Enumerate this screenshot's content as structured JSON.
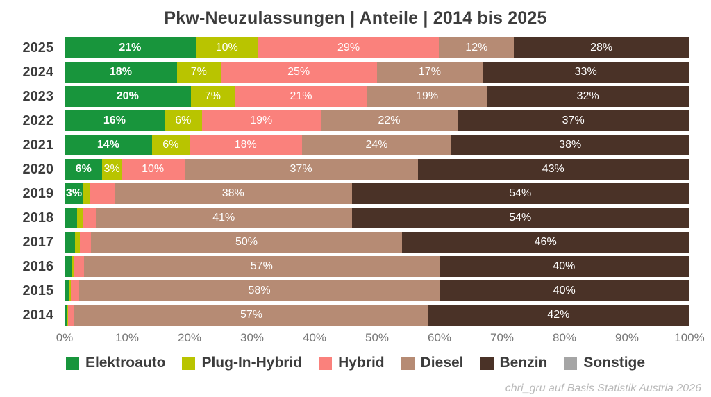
{
  "chart_data": {
    "type": "bar",
    "variant": "horizontal-stacked-100",
    "title": "Pkw-Neuzulassungen | Anteile | 2014 bis 2025",
    "source_credit": "chri_gru auf Basis Statistik Austria 2026",
    "xlabel": "",
    "ylabel": "",
    "xlim": [
      0,
      100
    ],
    "grid": "vertical-light",
    "legend_position": "bottom",
    "x_ticks": [
      "0%",
      "10%",
      "20%",
      "30%",
      "40%",
      "50%",
      "60%",
      "70%",
      "80%",
      "90%",
      "100%"
    ],
    "series": [
      {
        "name": "Elektroauto",
        "color": "#18953c"
      },
      {
        "name": "Plug-In-Hybrid",
        "color": "#b9c400"
      },
      {
        "name": "Hybrid",
        "color": "#fa817c"
      },
      {
        "name": "Diesel",
        "color": "#b68b74"
      },
      {
        "name": "Benzin",
        "color": "#4a3227"
      },
      {
        "name": "Sonstige",
        "color": "#a5a5a5"
      }
    ],
    "categories": [
      "2025",
      "2024",
      "2023",
      "2022",
      "2021",
      "2020",
      "2019",
      "2018",
      "2017",
      "2016",
      "2015",
      "2014"
    ],
    "rows": [
      {
        "year": "2025",
        "values": [
          21,
          10,
          29,
          12,
          28,
          0
        ],
        "labels": [
          "21%",
          "10%",
          "29%",
          "12%",
          "28%",
          ""
        ]
      },
      {
        "year": "2024",
        "values": [
          18,
          7,
          25,
          17,
          33,
          0
        ],
        "labels": [
          "18%",
          "7%",
          "25%",
          "17%",
          "33%",
          ""
        ]
      },
      {
        "year": "2023",
        "values": [
          20,
          7,
          21,
          19,
          32,
          0
        ],
        "labels": [
          "20%",
          "7%",
          "21%",
          "19%",
          "32%",
          ""
        ]
      },
      {
        "year": "2022",
        "values": [
          16,
          6,
          19,
          22,
          37,
          0
        ],
        "labels": [
          "16%",
          "6%",
          "19%",
          "22%",
          "37%",
          ""
        ]
      },
      {
        "year": "2021",
        "values": [
          14,
          6,
          18,
          24,
          38,
          0
        ],
        "labels": [
          "14%",
          "6%",
          "18%",
          "24%",
          "38%",
          ""
        ]
      },
      {
        "year": "2020",
        "values": [
          6,
          3,
          10,
          37,
          43,
          0
        ],
        "labels": [
          "6%",
          "3%",
          "10%",
          "37%",
          "43%",
          ""
        ]
      },
      {
        "year": "2019",
        "values": [
          3,
          1,
          4,
          38,
          54,
          0
        ],
        "labels": [
          "3%",
          "",
          "",
          "38%",
          "54%",
          ""
        ]
      },
      {
        "year": "2018",
        "values": [
          2,
          1,
          2,
          41,
          54,
          0
        ],
        "labels": [
          "",
          "",
          "",
          "41%",
          "54%",
          ""
        ]
      },
      {
        "year": "2017",
        "values": [
          1.7,
          0.7,
          1.8,
          50,
          46,
          0
        ],
        "labels": [
          "",
          "",
          "",
          "50%",
          "46%",
          ""
        ]
      },
      {
        "year": "2016",
        "values": [
          1.2,
          0.4,
          1.5,
          57,
          40,
          0
        ],
        "labels": [
          "",
          "",
          "",
          "57%",
          "40%",
          ""
        ]
      },
      {
        "year": "2015",
        "values": [
          0.7,
          0.3,
          1.3,
          58,
          40,
          0
        ],
        "labels": [
          "",
          "",
          "",
          "58%",
          "40%",
          ""
        ]
      },
      {
        "year": "2014",
        "values": [
          0.4,
          0.2,
          1.0,
          57,
          42,
          0
        ],
        "labels": [
          "",
          "",
          "",
          "57%",
          "42%",
          ""
        ]
      }
    ]
  }
}
